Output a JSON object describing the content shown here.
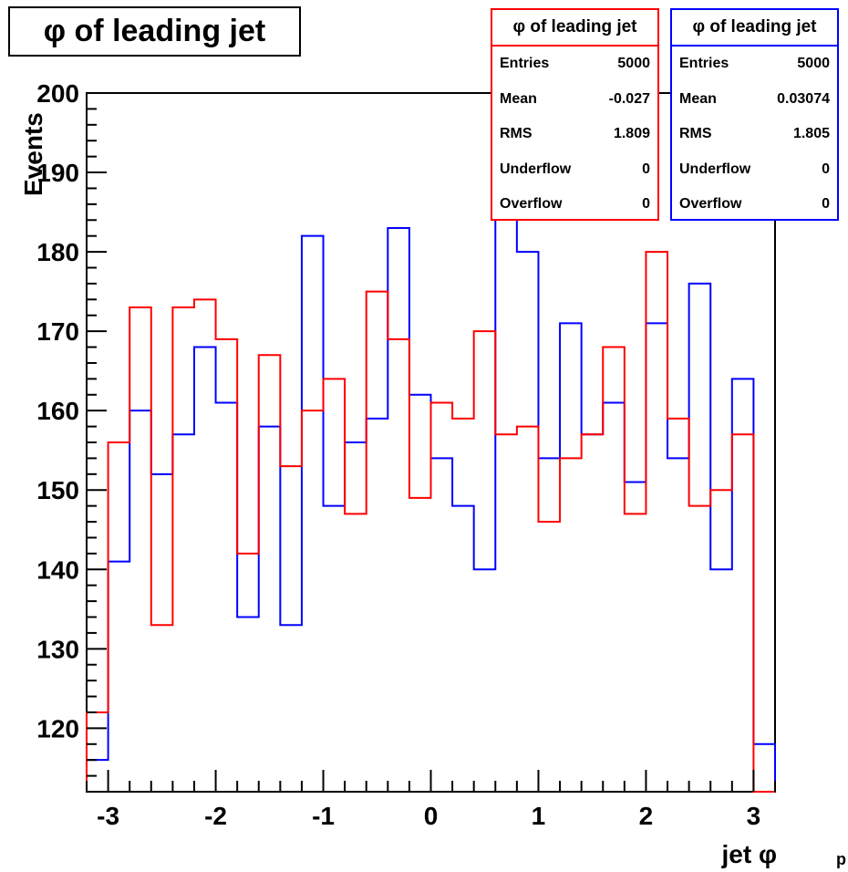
{
  "title": "φ of leading jet",
  "stats": [
    {
      "name": "φ of leading jet",
      "color": "#ff0000",
      "rows": [
        [
          "Entries",
          "5000"
        ],
        [
          "Mean",
          "-0.027"
        ],
        [
          "RMS",
          "1.809"
        ],
        [
          "Underflow",
          "0"
        ],
        [
          "Overflow",
          "0"
        ]
      ]
    },
    {
      "name": "φ of leading jet",
      "color": "#0000ff",
      "rows": [
        [
          "Entries",
          "5000"
        ],
        [
          "Mean",
          "0.03074"
        ],
        [
          "RMS",
          "1.805"
        ],
        [
          "Underflow",
          "0"
        ],
        [
          "Overflow",
          "0"
        ]
      ]
    }
  ],
  "corner_text": "p",
  "chart_data": {
    "type": "histogram",
    "xlabel": "jet φ",
    "ylabel": "Events",
    "xlim": [
      -3.2,
      3.2
    ],
    "ylim": [
      112,
      200
    ],
    "xticks": [
      "-3",
      "-2",
      "-1",
      "0",
      "1",
      "2",
      "3"
    ],
    "yticks": [
      "120",
      "130",
      "140",
      "150",
      "160",
      "170",
      "180",
      "190",
      "200"
    ],
    "bins": 32,
    "series": [
      {
        "color": "#0000ff",
        "values": [
          116,
          141,
          160,
          152,
          157,
          168,
          161,
          134,
          158,
          133,
          182,
          148,
          156,
          159,
          183,
          162,
          154,
          148,
          140,
          194,
          180,
          154,
          171,
          157,
          161,
          151,
          171,
          154,
          176,
          140,
          164,
          118
        ]
      },
      {
        "color": "#ff0000",
        "values": [
          122,
          156,
          173,
          133,
          173,
          174,
          169,
          142,
          167,
          153,
          160,
          164,
          147,
          175,
          169,
          149,
          161,
          159,
          170,
          157,
          158,
          146,
          154,
          157,
          168,
          147,
          180,
          159,
          148,
          150,
          157,
          112
        ]
      }
    ]
  }
}
